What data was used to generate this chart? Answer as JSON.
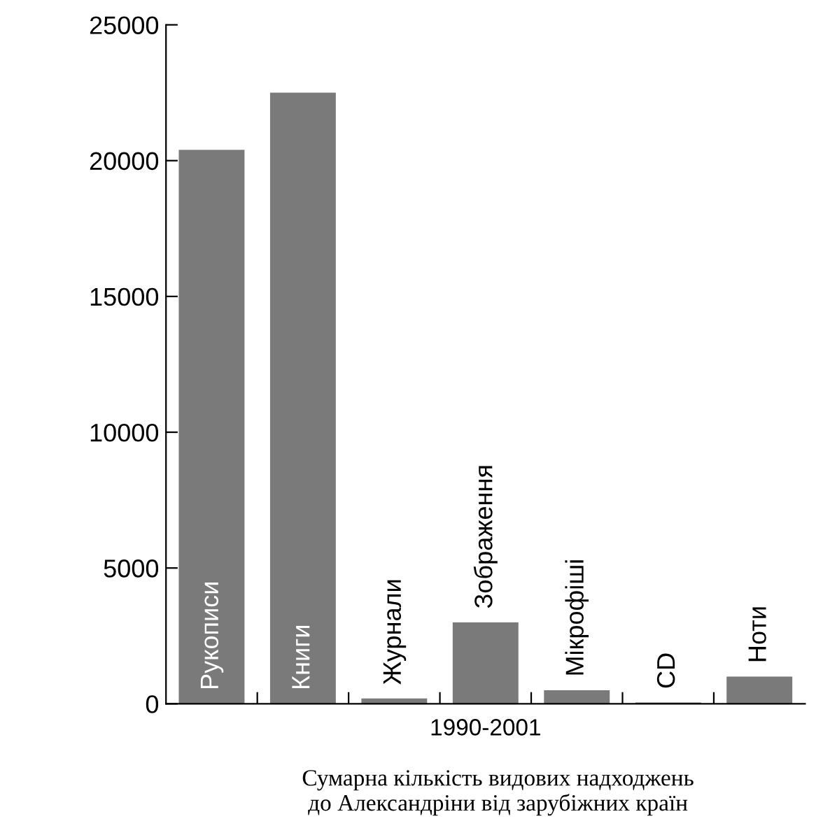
{
  "chart_data": {
    "type": "bar",
    "title": "Сумарна кількість видових надходжень\nдо Александріни від зарубіжних країн",
    "xlabel": "1990-2001",
    "categories": [
      "Рукописи",
      "Книги",
      "Журнали",
      "Зображення",
      "Мікрофіші",
      "CD",
      "Ноти"
    ],
    "values": [
      20400,
      22500,
      200,
      3000,
      500,
      50,
      1000
    ],
    "color": "#7a7a7a",
    "ylim": [
      0,
      25000
    ],
    "yticks": [
      0,
      5000,
      10000,
      15000,
      20000,
      25000
    ],
    "grid": false
  }
}
